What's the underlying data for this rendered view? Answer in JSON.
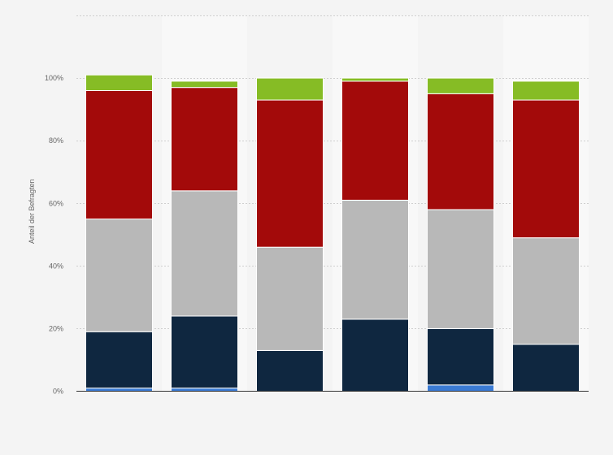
{
  "chart_data": {
    "type": "bar",
    "stacked": true,
    "title": "",
    "xlabel": "",
    "ylabel": "Anteil der Befragten",
    "categories": [
      "",
      "",
      "",
      "",
      "",
      ""
    ],
    "ylim": [
      0,
      120
    ],
    "yticks": [
      0,
      20,
      40,
      60,
      80,
      100
    ],
    "ytick_labels": [
      "0%",
      "20%",
      "40%",
      "60%",
      "80%",
      "100%"
    ],
    "grid": true,
    "legend": "none",
    "series": [
      {
        "color": "#3a7bd5",
        "values": [
          1,
          1,
          0,
          0,
          2,
          0
        ]
      },
      {
        "color": "#0f2740",
        "values": [
          18,
          23,
          13,
          23,
          18,
          15
        ]
      },
      {
        "color": "#b8b8b8",
        "values": [
          36,
          40,
          33,
          38,
          38,
          34
        ]
      },
      {
        "color": "#a30a0a",
        "values": [
          41,
          33,
          47,
          38,
          37,
          44
        ]
      },
      {
        "color": "#86bc25",
        "values": [
          5,
          2,
          7,
          1,
          5,
          6
        ]
      }
    ],
    "colors": {
      "background": "#f4f4f4",
      "plot_band_alt": "#f8f8f8",
      "grid": "#cfcfcf",
      "axis": "#333333"
    }
  }
}
